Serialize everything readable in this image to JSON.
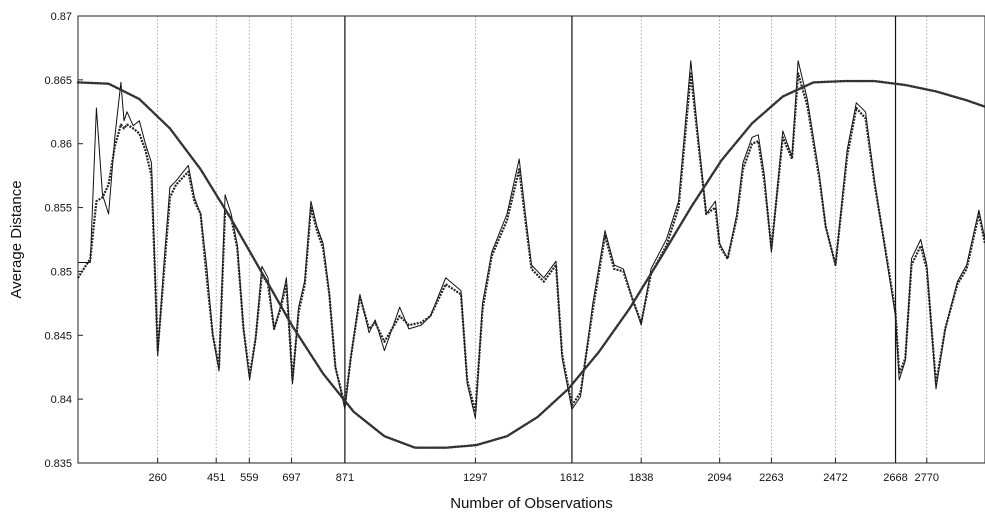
{
  "chart_data": {
    "type": "line",
    "title": "",
    "xlabel": "Number of Observations",
    "ylabel": "Average Distance",
    "xlim": [
      0,
      2960
    ],
    "ylim": [
      0.835,
      0.87
    ],
    "yticks": [
      0.835,
      0.84,
      0.845,
      0.85,
      0.855,
      0.86,
      0.865,
      0.87
    ],
    "ytick_labels": [
      "0.835",
      "0.84",
      "0.845",
      "0.85",
      "0.855",
      "0.86",
      "0.865",
      "0.87"
    ],
    "xticks": [
      260,
      451,
      559,
      697,
      871,
      1297,
      1612,
      1838,
      2094,
      2263,
      2472,
      2668,
      2770
    ],
    "xtick_labels": [
      "260",
      "451",
      "559",
      "697",
      "871",
      "1297",
      "1612",
      "1838",
      "2094",
      "2263",
      "2472",
      "2668",
      "2770"
    ],
    "solid_vlines": [
      871,
      1612,
      2668
    ],
    "dotted_vlines": [
      260,
      451,
      559,
      697,
      1297,
      1838,
      2094,
      2263,
      2472,
      2770
    ],
    "grid": false,
    "legend": "none",
    "colors": {
      "raw": "#111111",
      "smoothed": "#222222",
      "sine": "#333333"
    },
    "series": [
      {
        "style": "thin-solid",
        "x": [
          0,
          40,
          60,
          80,
          100,
          120,
          140,
          150,
          160,
          180,
          200,
          220,
          240,
          260,
          280,
          300,
          320,
          360,
          380,
          400,
          420,
          440,
          460,
          480,
          500,
          520,
          540,
          560,
          580,
          600,
          620,
          640,
          660,
          680,
          700,
          720,
          740,
          760,
          780,
          800,
          820,
          840,
          871,
          890,
          920,
          950,
          970,
          1000,
          1050,
          1080,
          1120,
          1150,
          1200,
          1250,
          1270,
          1297,
          1320,
          1350,
          1400,
          1440,
          1460,
          1480,
          1520,
          1560,
          1580,
          1612,
          1640,
          1680,
          1720,
          1750,
          1780,
          1810,
          1838,
          1870,
          1920,
          1960,
          2000,
          2020,
          2050,
          2080,
          2094,
          2120,
          2150,
          2170,
          2200,
          2220,
          2240,
          2263,
          2300,
          2330,
          2350,
          2380,
          2420,
          2440,
          2472,
          2510,
          2540,
          2570,
          2600,
          2640,
          2668,
          2680,
          2700,
          2720,
          2750,
          2770,
          2800,
          2830,
          2870,
          2900,
          2940,
          2960
        ],
        "y": [
          0.8507,
          0.8507,
          0.8628,
          0.856,
          0.8545,
          0.8605,
          0.8648,
          0.8618,
          0.8625,
          0.8614,
          0.8618,
          0.86,
          0.8585,
          0.8434,
          0.8505,
          0.8566,
          0.8571,
          0.8583,
          0.8558,
          0.8545,
          0.8504,
          0.845,
          0.8422,
          0.856,
          0.8545,
          0.8521,
          0.8455,
          0.8415,
          0.8448,
          0.8504,
          0.8495,
          0.8455,
          0.8472,
          0.8495,
          0.8412,
          0.8472,
          0.8493,
          0.8555,
          0.8535,
          0.8522,
          0.8483,
          0.8425,
          0.8392,
          0.8432,
          0.8482,
          0.8452,
          0.8462,
          0.8438,
          0.8472,
          0.8455,
          0.8458,
          0.8465,
          0.8495,
          0.8485,
          0.8412,
          0.8385,
          0.8475,
          0.8515,
          0.8545,
          0.8588,
          0.8545,
          0.8505,
          0.8495,
          0.8508,
          0.8432,
          0.8392,
          0.8402,
          0.8475,
          0.8532,
          0.8505,
          0.8502,
          0.8478,
          0.8458,
          0.8502,
          0.8525,
          0.8555,
          0.8665,
          0.8615,
          0.8545,
          0.8555,
          0.8522,
          0.851,
          0.8545,
          0.8585,
          0.8605,
          0.8607,
          0.8575,
          0.8515,
          0.861,
          0.859,
          0.8665,
          0.8635,
          0.8575,
          0.8535,
          0.8505,
          0.8595,
          0.8632,
          0.8625,
          0.857,
          0.8508,
          0.8465,
          0.8415,
          0.843,
          0.851,
          0.8525,
          0.8505,
          0.8408,
          0.8455,
          0.8492,
          0.8505,
          0.8548,
          0.8525
        ]
      },
      {
        "style": "thick-dotted",
        "x": [
          0,
          40,
          60,
          80,
          100,
          120,
          140,
          150,
          160,
          180,
          200,
          220,
          240,
          260,
          280,
          300,
          320,
          360,
          380,
          400,
          420,
          440,
          460,
          480,
          500,
          520,
          540,
          560,
          580,
          600,
          620,
          640,
          660,
          680,
          700,
          720,
          740,
          760,
          780,
          800,
          820,
          840,
          871,
          890,
          920,
          950,
          970,
          1000,
          1050,
          1080,
          1120,
          1150,
          1200,
          1250,
          1270,
          1297,
          1320,
          1350,
          1400,
          1440,
          1460,
          1480,
          1520,
          1560,
          1580,
          1612,
          1640,
          1680,
          1720,
          1750,
          1780,
          1810,
          1838,
          1870,
          1920,
          1960,
          2000,
          2020,
          2050,
          2080,
          2094,
          2120,
          2150,
          2170,
          2200,
          2220,
          2240,
          2263,
          2300,
          2330,
          2350,
          2380,
          2420,
          2440,
          2472,
          2510,
          2540,
          2570,
          2600,
          2640,
          2668,
          2680,
          2700,
          2720,
          2750,
          2770,
          2800,
          2830,
          2870,
          2900,
          2940,
          2960
        ],
        "y": [
          0.8495,
          0.851,
          0.8555,
          0.8558,
          0.8568,
          0.8598,
          0.8615,
          0.8612,
          0.8615,
          0.8612,
          0.8608,
          0.8595,
          0.8575,
          0.8438,
          0.8498,
          0.8558,
          0.8568,
          0.8578,
          0.8555,
          0.8545,
          0.8495,
          0.845,
          0.8425,
          0.8548,
          0.8542,
          0.8518,
          0.8455,
          0.8418,
          0.8448,
          0.8498,
          0.849,
          0.8455,
          0.847,
          0.849,
          0.8415,
          0.8468,
          0.849,
          0.855,
          0.8532,
          0.8518,
          0.8482,
          0.8425,
          0.8395,
          0.8432,
          0.848,
          0.8455,
          0.846,
          0.8445,
          0.8465,
          0.8458,
          0.846,
          0.8465,
          0.849,
          0.8482,
          0.8415,
          0.839,
          0.847,
          0.8512,
          0.854,
          0.858,
          0.854,
          0.8502,
          0.8492,
          0.8505,
          0.8435,
          0.8395,
          0.8405,
          0.847,
          0.8528,
          0.8502,
          0.85,
          0.8478,
          0.846,
          0.8498,
          0.852,
          0.855,
          0.8655,
          0.861,
          0.8545,
          0.855,
          0.852,
          0.851,
          0.8542,
          0.858,
          0.86,
          0.8602,
          0.857,
          0.8518,
          0.8605,
          0.8588,
          0.8655,
          0.863,
          0.8572,
          0.8535,
          0.8505,
          0.859,
          0.8628,
          0.862,
          0.8568,
          0.851,
          0.8468,
          0.842,
          0.8432,
          0.8505,
          0.852,
          0.8502,
          0.8412,
          0.8455,
          0.849,
          0.8502,
          0.8545,
          0.8522
        ]
      },
      {
        "style": "sine-dotted",
        "x": [
          0,
          100,
          200,
          300,
          400,
          500,
          600,
          700,
          800,
          900,
          1000,
          1100,
          1200,
          1300,
          1400,
          1500,
          1600,
          1700,
          1800,
          1900,
          2000,
          2100,
          2200,
          2300,
          2400,
          2500,
          2600,
          2700,
          2800,
          2900,
          2960
        ],
        "y": [
          0.8648,
          0.8647,
          0.8635,
          0.8612,
          0.858,
          0.8541,
          0.8499,
          0.8457,
          0.842,
          0.839,
          0.8371,
          0.8362,
          0.8362,
          0.8364,
          0.8371,
          0.8386,
          0.8408,
          0.8437,
          0.8471,
          0.851,
          0.855,
          0.8587,
          0.8616,
          0.8637,
          0.8648,
          0.8649,
          0.8649,
          0.8646,
          0.8641,
          0.8634,
          0.8629
        ]
      }
    ]
  }
}
